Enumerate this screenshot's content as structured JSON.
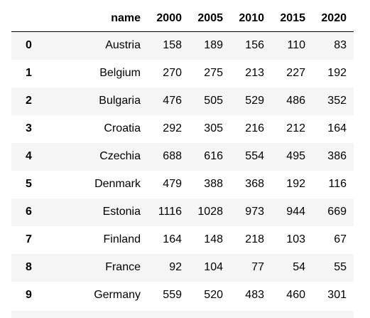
{
  "table": {
    "columns": [
      "",
      "name",
      "2000",
      "2005",
      "2010",
      "2015",
      "2020"
    ],
    "rows": [
      {
        "index": "0",
        "name": "Austria",
        "values": [
          "158",
          "189",
          "156",
          "110",
          "83"
        ]
      },
      {
        "index": "1",
        "name": "Belgium",
        "values": [
          "270",
          "275",
          "213",
          "227",
          "192"
        ]
      },
      {
        "index": "2",
        "name": "Bulgaria",
        "values": [
          "476",
          "505",
          "529",
          "486",
          "352"
        ]
      },
      {
        "index": "3",
        "name": "Croatia",
        "values": [
          "292",
          "305",
          "216",
          "212",
          "164"
        ]
      },
      {
        "index": "4",
        "name": "Czechia",
        "values": [
          "688",
          "616",
          "554",
          "495",
          "386"
        ]
      },
      {
        "index": "5",
        "name": "Denmark",
        "values": [
          "479",
          "388",
          "368",
          "192",
          "116"
        ]
      },
      {
        "index": "6",
        "name": "Estonia",
        "values": [
          "1116",
          "1028",
          "973",
          "944",
          "669"
        ]
      },
      {
        "index": "7",
        "name": "Finland",
        "values": [
          "164",
          "148",
          "218",
          "103",
          "67"
        ]
      },
      {
        "index": "8",
        "name": "France",
        "values": [
          "92",
          "104",
          "77",
          "54",
          "55"
        ]
      },
      {
        "index": "9",
        "name": "Germany",
        "values": [
          "559",
          "520",
          "483",
          "460",
          "301"
        ]
      }
    ]
  }
}
